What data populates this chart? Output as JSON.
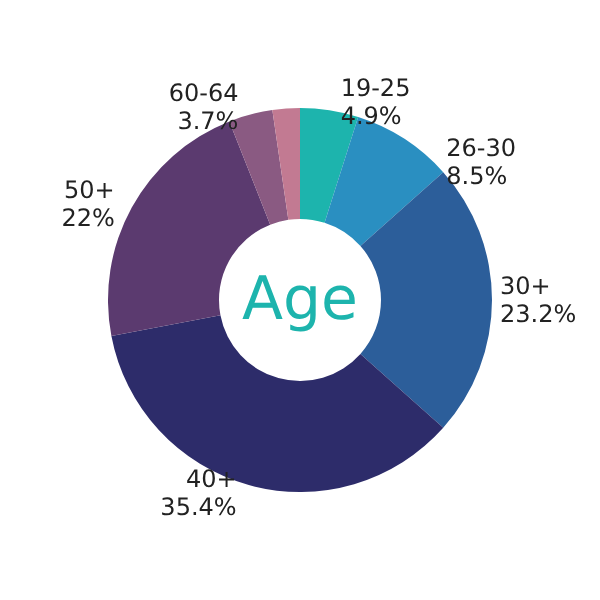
{
  "chart_data": {
    "type": "donut",
    "title": "Age",
    "categories": [
      "19-25",
      "26-30",
      "30+",
      "40+",
      "50+",
      "60-64",
      null
    ],
    "values": [
      4.9,
      8.5,
      23.2,
      35.4,
      22,
      3.7,
      2.3
    ],
    "value_labels": [
      "4.9%",
      "8.5%",
      "23.2%",
      "35.4%",
      "22%",
      "3.7%",
      null
    ],
    "colors": [
      "#1db4ad",
      "#2a8fc1",
      "#2c5e9a",
      "#2d2c6a",
      "#5b3a6f",
      "#8a5a82",
      "#c27a92"
    ],
    "legend": false
  }
}
